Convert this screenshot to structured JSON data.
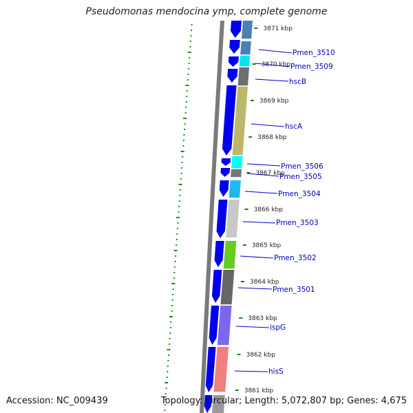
{
  "title": "Pseudomonas mendocina ymp, complete genome",
  "footer": {
    "accession": "Accession: NC_009439",
    "topology": "Topology: circular; Length: 5,072,807 bp; Genes: 4,675"
  },
  "colors": {
    "forward_arrow": "#0000ee",
    "backbone": "#7a7a7a",
    "label_line": "#0000cc",
    "label_text": "#0000bb",
    "tick": "#1a7a1a",
    "gc_dots": "#1a8a1a"
  },
  "scale": {
    "unit": "kbp",
    "ticks": [
      {
        "kbp": 3871,
        "label": "3871 kbp"
      },
      {
        "kbp": 3870,
        "label": "3870 kbp"
      },
      {
        "kbp": 3869,
        "label": "3869 kbp"
      },
      {
        "kbp": 3868,
        "label": "3868 kbp"
      },
      {
        "kbp": 3867,
        "label": "3867 kbp"
      },
      {
        "kbp": 3866,
        "label": "3866 kbp"
      },
      {
        "kbp": 3865,
        "label": "3865 kbp"
      },
      {
        "kbp": 3864,
        "label": "3864 kbp"
      },
      {
        "kbp": 3863,
        "label": "3863 kbp"
      },
      {
        "kbp": 3862,
        "label": "3862 kbp"
      },
      {
        "kbp": 3861,
        "label": "3861 kbp"
      }
    ]
  },
  "genes": [
    {
      "name": "Pmen_3510",
      "color": "#4682b4"
    },
    {
      "name": "Pmen_3509",
      "color": "#00e5ee"
    },
    {
      "name": "hscB",
      "color": "#6e6e6e"
    },
    {
      "name": "hscA",
      "color": "#bdb76b"
    },
    {
      "name": "Pmen_3506",
      "color": "#00ffff"
    },
    {
      "name": "Pmen_3505",
      "color": "#777777"
    },
    {
      "name": "Pmen_3504",
      "color": "#1fb8f0"
    },
    {
      "name": "Pmen_3503",
      "color": "#c8c8c8"
    },
    {
      "name": "Pmen_3502",
      "color": "#66cc22"
    },
    {
      "name": "Pmen_3501",
      "color": "#666666"
    },
    {
      "name": "ispG",
      "color": "#7b68ee"
    },
    {
      "name": "hisS",
      "color": "#f08080"
    }
  ]
}
